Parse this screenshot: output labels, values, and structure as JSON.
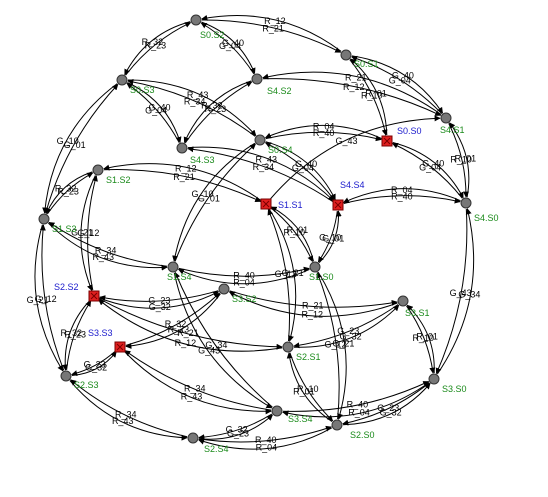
{
  "colors": {
    "label_green": "#1a8a1a",
    "label_blue": "#1a1acc",
    "red_node": "#e02020",
    "gray_node": "#777777"
  },
  "nodes": [
    {
      "id": "S0.S2",
      "label": "S0.S2",
      "kind": "normal"
    },
    {
      "id": "S0.S1",
      "label": "S0.S1",
      "kind": "normal"
    },
    {
      "id": "S4.S1",
      "label": "S4.S1",
      "kind": "normal"
    },
    {
      "id": "S0.S0",
      "label": "S0.S0",
      "kind": "marked"
    },
    {
      "id": "S4.S0",
      "label": "S4.S0",
      "kind": "normal"
    },
    {
      "id": "S4.S2",
      "label": "S4.S2",
      "kind": "normal"
    },
    {
      "id": "S0.S3",
      "label": "S0.S3",
      "kind": "normal"
    },
    {
      "id": "S0.S4",
      "label": "S0.S4",
      "kind": "normal"
    },
    {
      "id": "S4.S3",
      "label": "S4.S3",
      "kind": "normal"
    },
    {
      "id": "S4.S4",
      "label": "S4.S4",
      "kind": "marked"
    },
    {
      "id": "S1.S2",
      "label": "S1.S2",
      "kind": "normal"
    },
    {
      "id": "S1.S1",
      "label": "S1.S1",
      "kind": "marked"
    },
    {
      "id": "S1.S3",
      "label": "S1.S3",
      "kind": "normal"
    },
    {
      "id": "S1.S4",
      "label": "S1.S4",
      "kind": "normal"
    },
    {
      "id": "S1.S0",
      "label": "S1.S0",
      "kind": "normal"
    },
    {
      "id": "S2.S2",
      "label": "S2.S2",
      "kind": "marked"
    },
    {
      "id": "S3.S2",
      "label": "S3.S2",
      "kind": "normal"
    },
    {
      "id": "S3.S1",
      "label": "S3.S1",
      "kind": "normal"
    },
    {
      "id": "S3.S3",
      "label": "S3.S3",
      "kind": "marked"
    },
    {
      "id": "S2.S1",
      "label": "S2.S1",
      "kind": "normal"
    },
    {
      "id": "S2.S3",
      "label": "S2.S3",
      "kind": "normal"
    },
    {
      "id": "S3.S0",
      "label": "S3.S0",
      "kind": "normal"
    },
    {
      "id": "S3.S4",
      "label": "S3.S4",
      "kind": "normal"
    },
    {
      "id": "S2.S0",
      "label": "S2.S0",
      "kind": "normal"
    },
    {
      "id": "S2.S4",
      "label": "S2.S4",
      "kind": "normal"
    }
  ],
  "edges": [
    {
      "from": "S0.S2",
      "to": "S0.S1",
      "label": "R_21"
    },
    {
      "from": "S0.S1",
      "to": "S0.S2",
      "label": "R_12"
    },
    {
      "from": "S0.S2",
      "to": "S0.S3",
      "label": "R_32"
    },
    {
      "from": "S0.S3",
      "to": "S0.S2",
      "label": "R_23"
    },
    {
      "from": "S0.S2",
      "to": "S4.S2",
      "label": "G_40"
    },
    {
      "from": "S4.S2",
      "to": "S0.S2",
      "label": "G_04"
    },
    {
      "from": "S0.S1",
      "to": "S4.S1",
      "label": "G_40"
    },
    {
      "from": "S4.S1",
      "to": "S0.S1",
      "label": "G_04"
    },
    {
      "from": "S0.S1",
      "to": "S0.S0",
      "label": "R_10"
    },
    {
      "from": "S0.S0",
      "to": "S0.S1",
      "label": "R_01"
    },
    {
      "from": "S4.S1",
      "to": "S4.S2",
      "label": "R_21"
    },
    {
      "from": "S4.S2",
      "to": "S4.S1",
      "label": "R_12"
    },
    {
      "from": "S4.S1",
      "to": "S4.S0",
      "label": "R_10"
    },
    {
      "from": "S4.S0",
      "to": "S4.S1",
      "label": "R_01"
    },
    {
      "from": "S0.S0",
      "to": "S4.S0",
      "label": "G_40"
    },
    {
      "from": "S4.S0",
      "to": "S0.S0",
      "label": "G_04"
    },
    {
      "from": "S0.S3",
      "to": "S1.S3",
      "label": "G_10"
    },
    {
      "from": "S1.S3",
      "to": "S0.S3",
      "label": "G_01"
    },
    {
      "from": "S0.S3",
      "to": "S4.S3",
      "label": "G_40"
    },
    {
      "from": "S4.S3",
      "to": "S0.S3",
      "label": "G_04"
    },
    {
      "from": "S4.S2",
      "to": "S4.S3",
      "label": "R_32"
    },
    {
      "from": "S4.S3",
      "to": "S4.S2",
      "label": "R_23"
    },
    {
      "from": "S4.S3",
      "to": "S4.S4",
      "label": "R_43"
    },
    {
      "from": "S4.S4",
      "to": "S4.S3",
      "label": "R_34"
    },
    {
      "from": "S0.S3",
      "to": "S0.S4",
      "label": "R_43"
    },
    {
      "from": "S0.S4",
      "to": "S0.S3",
      "label": "R_34"
    },
    {
      "from": "S0.S4",
      "to": "S0.S0",
      "label": "R_40"
    },
    {
      "from": "S0.S0",
      "to": "S0.S4",
      "label": "R_04"
    },
    {
      "from": "S0.S4",
      "to": "S1.S4",
      "label": "G_10"
    },
    {
      "from": "S1.S4",
      "to": "S0.S4",
      "label": "G_01"
    },
    {
      "from": "S0.S4",
      "to": "S4.S4",
      "label": "G_40"
    },
    {
      "from": "S4.S4",
      "to": "S0.S4",
      "label": "G_04"
    },
    {
      "from": "S4.S4",
      "to": "S4.S0",
      "label": "R_40"
    },
    {
      "from": "S4.S0",
      "to": "S4.S4",
      "label": "R_04"
    },
    {
      "from": "S1.S2",
      "to": "S1.S1",
      "label": "R_21"
    },
    {
      "from": "S1.S1",
      "to": "S1.S2",
      "label": "R_12"
    },
    {
      "from": "S1.S2",
      "to": "S1.S3",
      "label": "R_32"
    },
    {
      "from": "S1.S3",
      "to": "S1.S2",
      "label": "R_23"
    },
    {
      "from": "S1.S2",
      "to": "S2.S2",
      "label": "G_21"
    },
    {
      "from": "S2.S2",
      "to": "S1.S2",
      "label": "G_12"
    },
    {
      "from": "S1.S1",
      "to": "S4.S1",
      "label": "G_43"
    },
    {
      "from": "S1.S1",
      "to": "S1.S0",
      "label": "R_10"
    },
    {
      "from": "S1.S0",
      "to": "S1.S1",
      "label": "R_01"
    },
    {
      "from": "S1.S1",
      "to": "S2.S1",
      "label": "G_21"
    },
    {
      "from": "S2.S1",
      "to": "S1.S1",
      "label": "G_12"
    },
    {
      "from": "S1.S0",
      "to": "S4.S4",
      "label": "G_01"
    },
    {
      "from": "S4.S4",
      "to": "S1.S0",
      "label": "G_10"
    },
    {
      "from": "S1.S3",
      "to": "S1.S4",
      "label": "R_43"
    },
    {
      "from": "S1.S4",
      "to": "S1.S3",
      "label": "R_34"
    },
    {
      "from": "S1.S3",
      "to": "S2.S3",
      "label": "G_21"
    },
    {
      "from": "S2.S3",
      "to": "S1.S3",
      "label": "G_12"
    },
    {
      "from": "S1.S4",
      "to": "S1.S0",
      "label": "R_40"
    },
    {
      "from": "S1.S0",
      "to": "S1.S4",
      "label": "R_04"
    },
    {
      "from": "S1.S4",
      "to": "S3.S4",
      "label": "G_43"
    },
    {
      "from": "S3.S4",
      "to": "S1.S4",
      "label": "G_34"
    },
    {
      "from": "S1.S0",
      "to": "S2.S0",
      "label": "G_21"
    },
    {
      "from": "S2.S0",
      "to": "S1.S0",
      "label": "G_12"
    },
    {
      "from": "S4.S0",
      "to": "S3.S0",
      "label": "G_43"
    },
    {
      "from": "S3.S0",
      "to": "S4.S0",
      "label": "G_34"
    },
    {
      "from": "S2.S2",
      "to": "S3.S2",
      "label": "G_32"
    },
    {
      "from": "S3.S2",
      "to": "S2.S2",
      "label": "G_23"
    },
    {
      "from": "S2.S2",
      "to": "S2.S1",
      "label": "R_21"
    },
    {
      "from": "S2.S1",
      "to": "S2.S2",
      "label": "R_12"
    },
    {
      "from": "S2.S2",
      "to": "S2.S3",
      "label": "R_32"
    },
    {
      "from": "S2.S3",
      "to": "S2.S2",
      "label": "R_23"
    },
    {
      "from": "S3.S2",
      "to": "S3.S1",
      "label": "R_21"
    },
    {
      "from": "S3.S1",
      "to": "S3.S2",
      "label": "R_12"
    },
    {
      "from": "S3.S2",
      "to": "S3.S3",
      "label": "R_23"
    },
    {
      "from": "S3.S3",
      "to": "S3.S2",
      "label": "R_32"
    },
    {
      "from": "S3.S1",
      "to": "S2.S1",
      "label": "G_23"
    },
    {
      "from": "S2.S1",
      "to": "S3.S1",
      "label": "G_32"
    },
    {
      "from": "S3.S1",
      "to": "S3.S0",
      "label": "R_10"
    },
    {
      "from": "S3.S0",
      "to": "S3.S1",
      "label": "R_01"
    },
    {
      "from": "S3.S3",
      "to": "S2.S3",
      "label": "G_23"
    },
    {
      "from": "S2.S3",
      "to": "S3.S3",
      "label": "G_32"
    },
    {
      "from": "S3.S3",
      "to": "S3.S4",
      "label": "R_43"
    },
    {
      "from": "S3.S4",
      "to": "S3.S3",
      "label": "R_34"
    },
    {
      "from": "S2.S3",
      "to": "S2.S4",
      "label": "R_43"
    },
    {
      "from": "S2.S4",
      "to": "S2.S3",
      "label": "R_34"
    },
    {
      "from": "S3.S4",
      "to": "S3.S0",
      "label": "R_40"
    },
    {
      "from": "S3.S0",
      "to": "S3.S4",
      "label": "R_04"
    },
    {
      "from": "S3.S4",
      "to": "S2.S4",
      "label": "G_32"
    },
    {
      "from": "S2.S4",
      "to": "S3.S4",
      "label": "G_23"
    },
    {
      "from": "S2.S0",
      "to": "S3.S0",
      "label": "G_32"
    },
    {
      "from": "S3.S0",
      "to": "S2.S0",
      "label": "G_23"
    },
    {
      "from": "S2.S4",
      "to": "S2.S0",
      "label": "R_40"
    },
    {
      "from": "S2.S0",
      "to": "S2.S4",
      "label": "R_04"
    },
    {
      "from": "S2.S1",
      "to": "S2.S0",
      "label": "R_10"
    },
    {
      "from": "S2.S0",
      "to": "S2.S1",
      "label": "R_01"
    }
  ]
}
